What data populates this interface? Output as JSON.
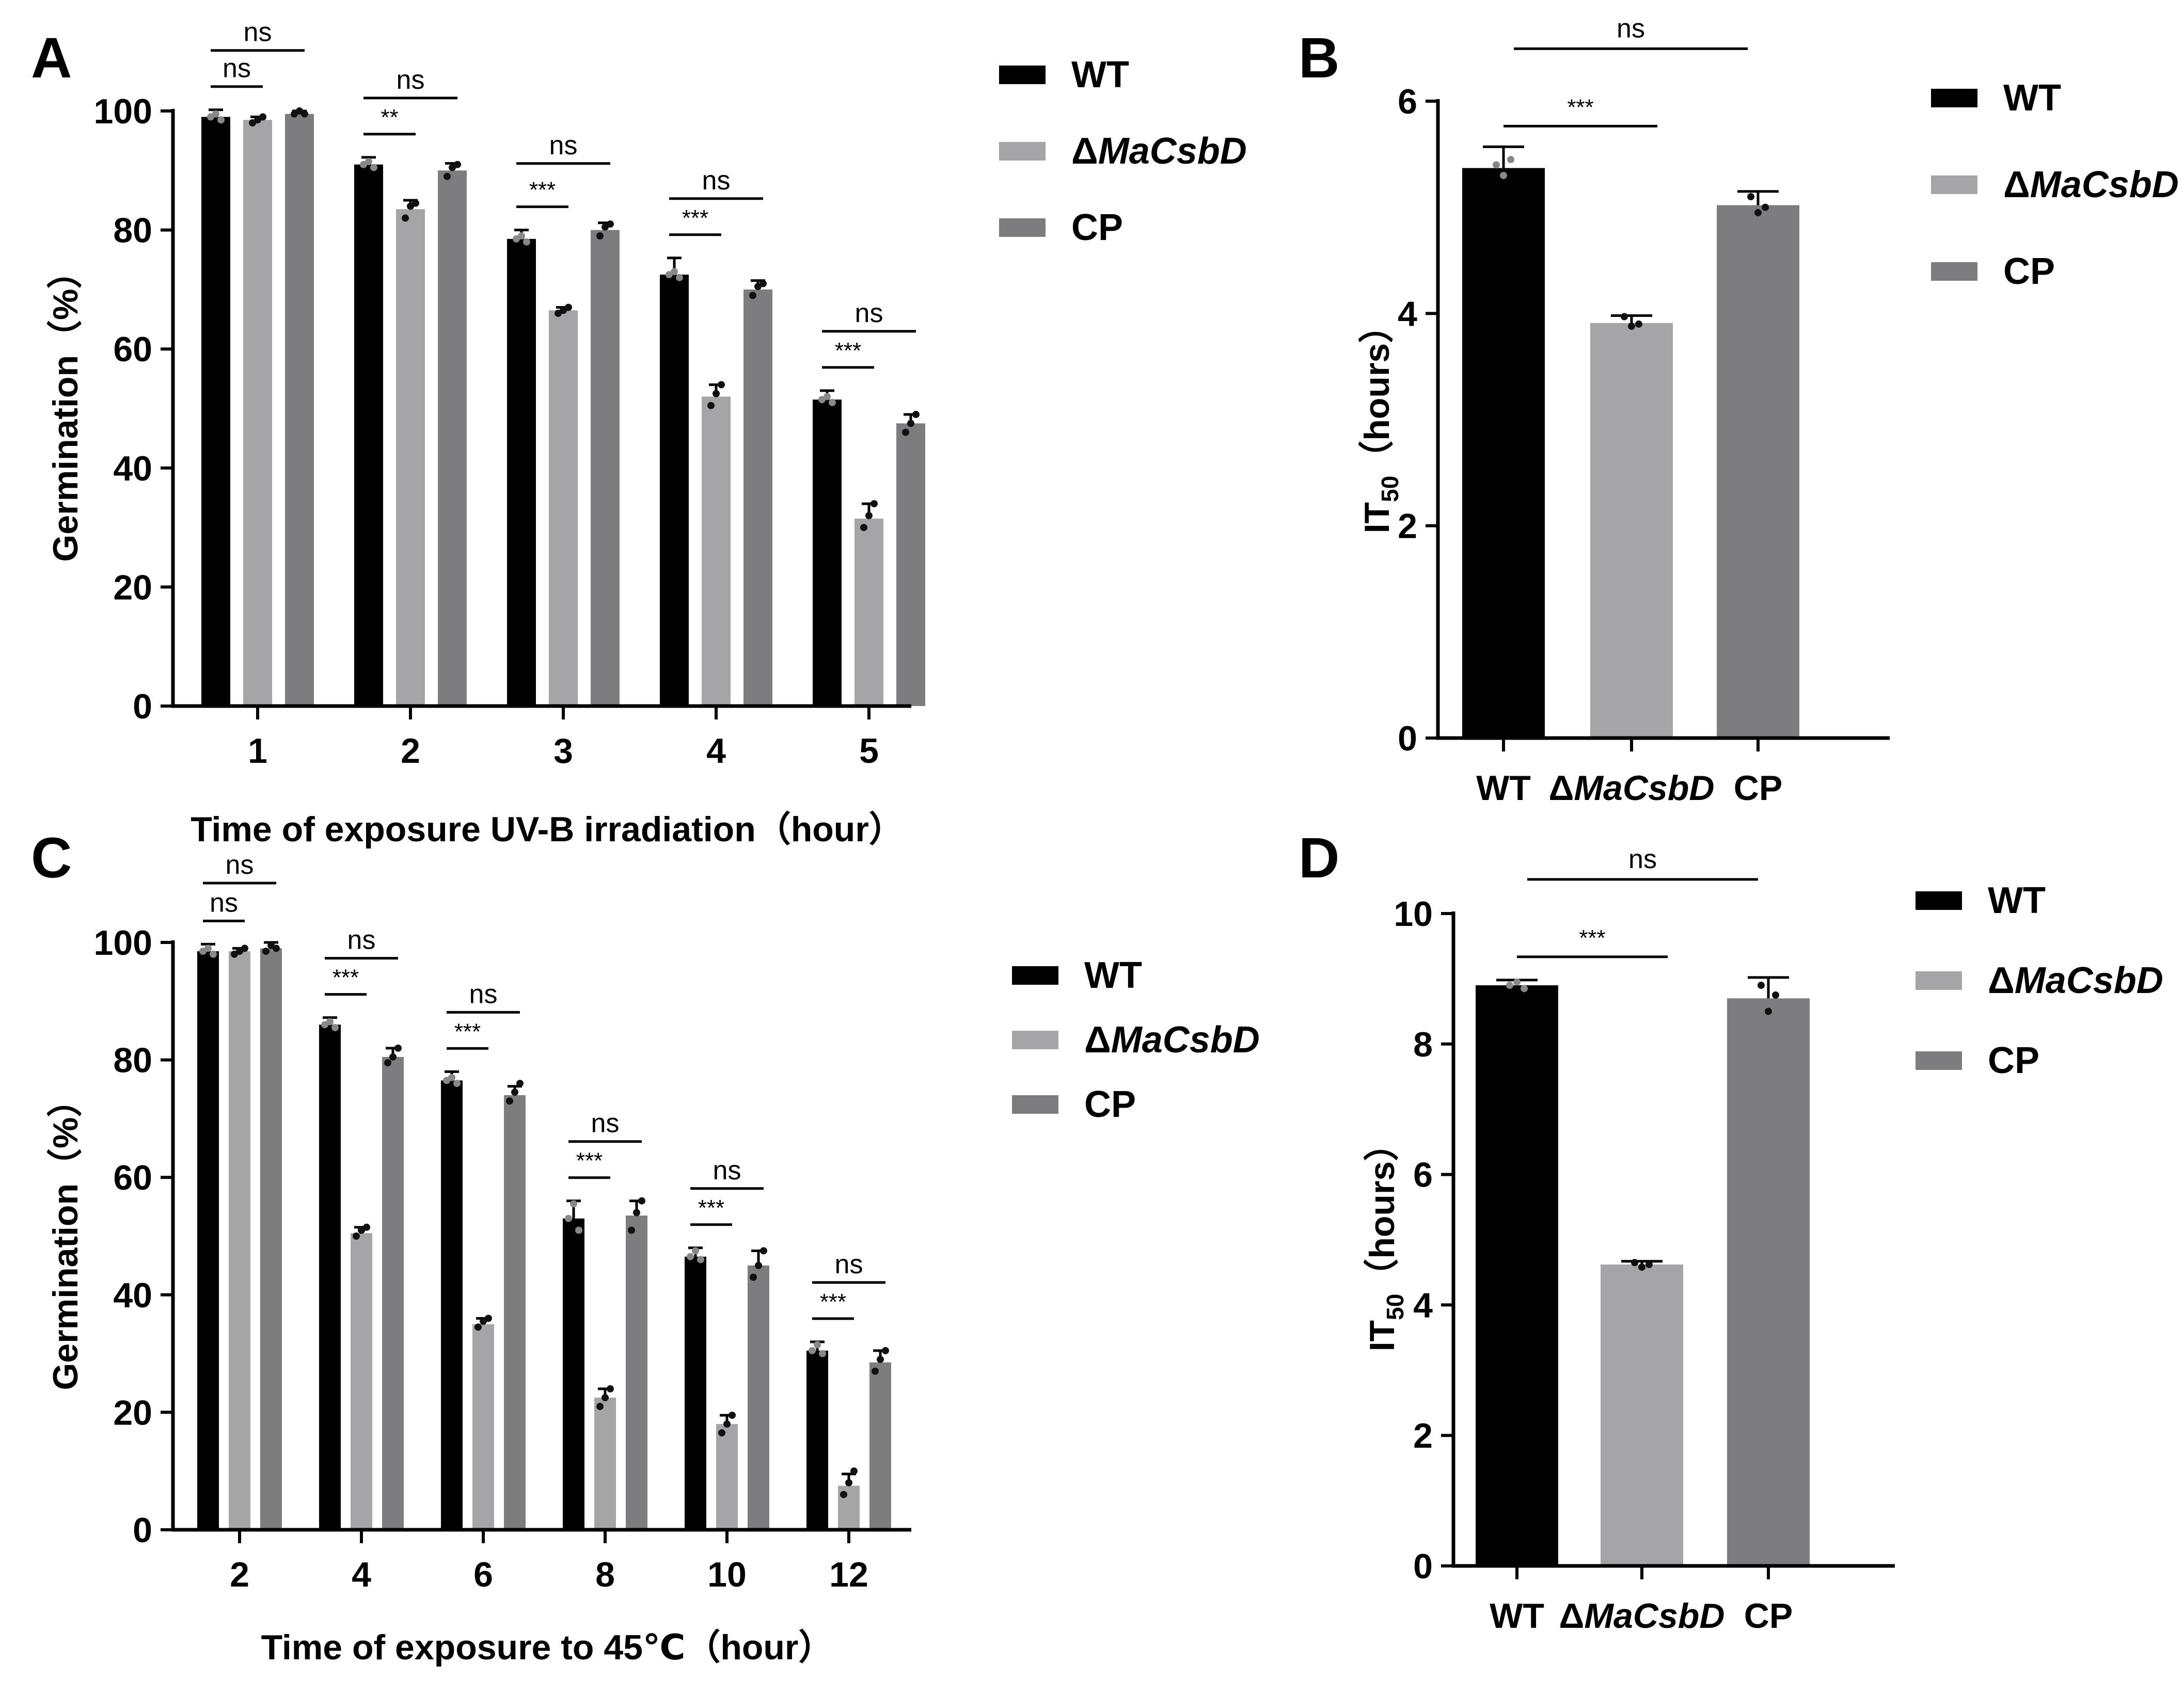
{
  "panels": [
    {
      "id": "A",
      "letter": "A",
      "chart_data": {
        "type": "bar",
        "title": "",
        "xlabel": "Time of exposure UV-B irradiation（hour）",
        "ylabel": "Germination（%）",
        "ylim": [
          0,
          100
        ],
        "yticks": [
          "0",
          "20",
          "40",
          "60",
          "80",
          "100"
        ],
        "categories": [
          "1",
          "2",
          "3",
          "4",
          "5"
        ],
        "series": [
          {
            "name": "WT",
            "values": [
              99,
              91,
              78.5,
              72.5,
              51.5
            ],
            "errors": [
              1.2,
              1.2,
              1.5,
              2.8,
              1.5
            ],
            "color": "#000000"
          },
          {
            "name": "ΔMaCsbD",
            "values": [
              98.5,
              83.5,
              66.5,
              52,
              31.5
            ],
            "errors": [
              0.5,
              1.5,
              0.5,
              2.0,
              2.5
            ],
            "color": "#a5a5a7"
          },
          {
            "name": "CP",
            "values": [
              99.5,
              90,
              80,
              70,
              47.5
            ],
            "errors": [
              0.5,
              1.2,
              1.2,
              1.5,
              1.5
            ],
            "color": "#7d7d7f"
          }
        ],
        "points": [
          [
            [
              99,
              99.5,
              98.5
            ],
            [
              98,
              98.5,
              99
            ],
            [
              99.5,
              100,
              99.5
            ]
          ],
          [
            [
              91,
              91.5,
              90.5
            ],
            [
              82,
              84,
              84.5
            ],
            [
              89,
              90.5,
              91
            ]
          ],
          [
            [
              78.5,
              79,
              78
            ],
            [
              66,
              66.5,
              67
            ],
            [
              79,
              80.5,
              81
            ]
          ],
          [
            [
              72.5,
              73,
              72
            ],
            [
              50.5,
              52.5,
              54
            ],
            [
              69,
              70.5,
              71
            ]
          ],
          [
            [
              51.5,
              52,
              51
            ],
            [
              30,
              32,
              34
            ],
            [
              46,
              47.5,
              49
            ]
          ]
        ],
        "significance": [
          {
            "group": 0,
            "inner": "ns",
            "outer": "ns"
          },
          {
            "group": 1,
            "inner": "**",
            "outer": "ns"
          },
          {
            "group": 2,
            "inner": "***",
            "outer": "ns"
          },
          {
            "group": 3,
            "inner": "***",
            "outer": "ns"
          },
          {
            "group": 4,
            "inner": "***",
            "outer": "ns"
          }
        ],
        "legend": {
          "position": "top-right",
          "prefix": "Δ",
          "entries": [
            "WT",
            "ΔMaCsbD",
            "CP"
          ]
        }
      }
    },
    {
      "id": "B",
      "letter": "B",
      "chart_data": {
        "type": "bar",
        "title": "",
        "xlabel": "",
        "ylabel_main": "IT",
        "ylabel_sub": "50",
        "ylabel_tail": "（hours）",
        "ylim": [
          0,
          6
        ],
        "yticks": [
          "0",
          "2",
          "4",
          "6"
        ],
        "categories": [
          "WT",
          "ΔMaCsbD",
          "CP"
        ],
        "values": [
          5.37,
          3.91,
          5.02
        ],
        "errors": [
          0.2,
          0.07,
          0.13
        ],
        "colors": [
          "#000000",
          "#a5a5a7",
          "#7d7d7f"
        ],
        "points": [
          [
            5.4,
            5.3,
            5.45
          ],
          [
            3.97,
            3.88,
            3.9
          ],
          [
            5.1,
            4.95,
            5.0
          ]
        ],
        "significance": [
          {
            "pair": [
              0,
              1
            ],
            "label": "***"
          },
          {
            "pair": [
              0,
              2
            ],
            "label": "ns"
          }
        ],
        "legend": {
          "position": "top-right",
          "entries": [
            "WT",
            "ΔMaCsbD",
            "CP"
          ]
        }
      }
    },
    {
      "id": "C",
      "letter": "C",
      "chart_data": {
        "type": "bar",
        "title": "",
        "xlabel": "Time of exposure to 45℃（hour）",
        "ylabel": "Germination（%）",
        "ylim": [
          0,
          100
        ],
        "yticks": [
          "0",
          "20",
          "40",
          "60",
          "80",
          "100"
        ],
        "categories": [
          "2",
          "4",
          "6",
          "8",
          "10",
          "12"
        ],
        "series": [
          {
            "name": "WT",
            "values": [
              98.5,
              86,
              76.5,
              53,
              46.5,
              30.5
            ],
            "errors": [
              1.2,
              1.2,
              1.5,
              3.0,
              1.5,
              1.5
            ],
            "color": "#000000"
          },
          {
            "name": "ΔMaCsbD",
            "values": [
              98.5,
              50.5,
              35,
              22.5,
              18,
              7.5
            ],
            "errors": [
              0.5,
              1.0,
              1.0,
              1.5,
              1.5,
              2.0
            ],
            "color": "#a5a5a7"
          },
          {
            "name": "CP",
            "values": [
              99,
              80.5,
              74,
              53.5,
              45,
              28.5
            ],
            "errors": [
              1.0,
              1.5,
              1.5,
              2.5,
              2.5,
              2.0
            ],
            "color": "#7d7d7f"
          }
        ],
        "points": [
          [
            [
              98.5,
              99,
              98
            ],
            [
              98,
              98.5,
              99
            ],
            [
              98.5,
              99.5,
              99
            ]
          ],
          [
            [
              86,
              86.5,
              85.5
            ],
            [
              50,
              51,
              51.5
            ],
            [
              79.5,
              80.5,
              82
            ]
          ],
          [
            [
              76.5,
              77,
              76
            ],
            [
              34.5,
              35.5,
              36
            ],
            [
              73,
              74.5,
              76
            ]
          ],
          [
            [
              53,
              55.5,
              51
            ],
            [
              21,
              22.5,
              24
            ],
            [
              51,
              54,
              56
            ]
          ],
          [
            [
              46.5,
              47.5,
              46
            ],
            [
              16.5,
              18,
              19.5
            ],
            [
              43,
              45,
              47.5
            ]
          ],
          [
            [
              30.5,
              31.5,
              30
            ],
            [
              6,
              8,
              10
            ],
            [
              27,
              29,
              30.5
            ]
          ]
        ],
        "significance": [
          {
            "group": 0,
            "inner": "ns",
            "outer": "ns"
          },
          {
            "group": 1,
            "inner": "***",
            "outer": "ns"
          },
          {
            "group": 2,
            "inner": "***",
            "outer": "ns"
          },
          {
            "group": 3,
            "inner": "***",
            "outer": "ns"
          },
          {
            "group": 4,
            "inner": "***",
            "outer": "ns"
          },
          {
            "group": 5,
            "inner": "***",
            "outer": "ns"
          }
        ],
        "legend": {
          "position": "top-right",
          "entries": [
            "WT",
            "ΔMaCsbD",
            "CP"
          ]
        }
      }
    },
    {
      "id": "D",
      "letter": "D",
      "chart_data": {
        "type": "bar",
        "title": "",
        "xlabel": "",
        "ylabel_main": "IT",
        "ylabel_sub": "50",
        "ylabel_tail": "（hours）",
        "ylim": [
          0,
          10
        ],
        "yticks": [
          "0",
          "2",
          "4",
          "6",
          "8",
          "10"
        ],
        "categories": [
          "WT",
          "ΔMaCsbD",
          "CP"
        ],
        "values": [
          8.9,
          4.62,
          8.7
        ],
        "errors": [
          0.08,
          0.05,
          0.32
        ],
        "colors": [
          "#000000",
          "#a5a5a7",
          "#7d7d7f"
        ],
        "points": [
          [
            8.9,
            8.95,
            8.85
          ],
          [
            4.65,
            4.58,
            4.62
          ],
          [
            8.9,
            8.5,
            8.75
          ]
        ],
        "significance": [
          {
            "pair": [
              0,
              1
            ],
            "label": "***"
          },
          {
            "pair": [
              0,
              2
            ],
            "label": "ns"
          }
        ],
        "legend": {
          "position": "top-right",
          "entries": [
            "WT",
            "ΔMaCsbD",
            "CP"
          ]
        }
      }
    }
  ]
}
